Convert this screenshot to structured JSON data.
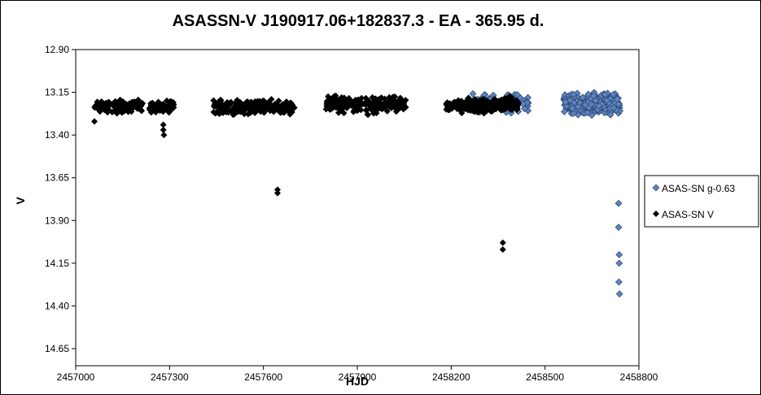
{
  "chart_data": {
    "type": "scatter",
    "title": "ASASSN-V J190917.06+182837.3  - EA - 365.95 d.",
    "xlabel": "HJD",
    "ylabel": "V",
    "xlim": [
      2457000,
      2458800
    ],
    "ylim": [
      12.9,
      14.75
    ],
    "y_inverted": true,
    "x_ticks": [
      2457000,
      2457300,
      2457600,
      2457900,
      2458200,
      2458500,
      2458800
    ],
    "y_ticks": [
      "12.90",
      "13.15",
      "13.40",
      "13.65",
      "13.90",
      "14.15",
      "14.40",
      "14.65"
    ],
    "grid": false,
    "legend_position": "right",
    "series": [
      {
        "name": "ASAS-SN g-0.63",
        "color": "#5b84bf",
        "marker": "diamond",
        "bands": [
          {
            "x": [
              2458250,
              2458450
            ],
            "y": [
              13.14,
              13.29
            ],
            "n": 120
          },
          {
            "x": [
              2458560,
              2458740
            ],
            "y": [
              13.14,
              13.3
            ],
            "n": 320
          }
        ],
        "points": [
          {
            "x": 2458735,
            "y": 13.8
          },
          {
            "x": 2458735,
            "y": 13.94
          },
          {
            "x": 2458737,
            "y": 14.1
          },
          {
            "x": 2458737,
            "y": 14.15
          },
          {
            "x": 2458736,
            "y": 14.26
          },
          {
            "x": 2458738,
            "y": 14.33
          }
        ]
      },
      {
        "name": "ASAS-SN V",
        "color": "#000000",
        "marker": "diamond",
        "bands": [
          {
            "x": [
              2457060,
              2457215
            ],
            "y": [
              13.18,
              13.28
            ],
            "n": 140
          },
          {
            "x": [
              2457235,
              2457315
            ],
            "y": [
              13.18,
              13.28
            ],
            "n": 70
          },
          {
            "x": [
              2457440,
              2457700
            ],
            "y": [
              13.17,
              13.3
            ],
            "n": 220
          },
          {
            "x": [
              2457800,
              2458055
            ],
            "y": [
              13.15,
              13.29
            ],
            "n": 220
          },
          {
            "x": [
              2458180,
              2458420
            ],
            "y": [
              13.16,
              13.29
            ],
            "n": 200
          }
        ],
        "points": [
          {
            "x": 2457060,
            "y": 13.32
          },
          {
            "x": 2457280,
            "y": 13.34
          },
          {
            "x": 2457280,
            "y": 13.37
          },
          {
            "x": 2457282,
            "y": 13.4
          },
          {
            "x": 2457645,
            "y": 13.72
          },
          {
            "x": 2457645,
            "y": 13.74
          },
          {
            "x": 2458365,
            "y": 14.03
          },
          {
            "x": 2458365,
            "y": 14.07
          }
        ]
      }
    ]
  }
}
